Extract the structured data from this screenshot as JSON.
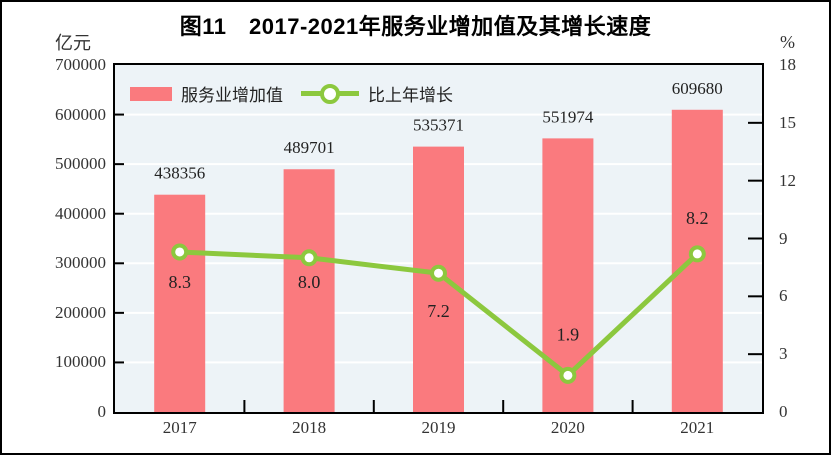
{
  "title": "图11　2017-2021年服务业增加值及其增长速度",
  "colors": {
    "bar": "#FA7A7E",
    "line": "#8CC83E",
    "marker_fill": "#FFFFFF",
    "plot_bg": "#EDF3F7",
    "grid": "#FFFFFF",
    "axis": "#000000",
    "frame": "#000000",
    "text": "#333333"
  },
  "chart_data": {
    "type": "bar",
    "categories": [
      "2017",
      "2018",
      "2019",
      "2020",
      "2021"
    ],
    "series": [
      {
        "name": "服务业增加值",
        "type": "bar",
        "axis": "left",
        "values": [
          438356,
          489701,
          535371,
          551974,
          609680
        ]
      },
      {
        "name": "比上年增长",
        "type": "line",
        "axis": "right",
        "values": [
          8.3,
          8.0,
          7.2,
          1.9,
          8.2
        ]
      }
    ],
    "title": "图11　2017-2021年服务业增加值及其增长速度",
    "left_unit": "亿元",
    "right_unit": "%",
    "left_ylim": [
      0,
      700000
    ],
    "right_ylim": [
      0,
      18
    ],
    "left_ticks": [
      0,
      100000,
      200000,
      300000,
      400000,
      500000,
      600000,
      700000
    ],
    "right_ticks": [
      0,
      3,
      6,
      9,
      12,
      15,
      18
    ],
    "grid": true,
    "legend_position": "top-left",
    "growth_label_dy": [
      36,
      30,
      44,
      -35,
      -30
    ]
  }
}
